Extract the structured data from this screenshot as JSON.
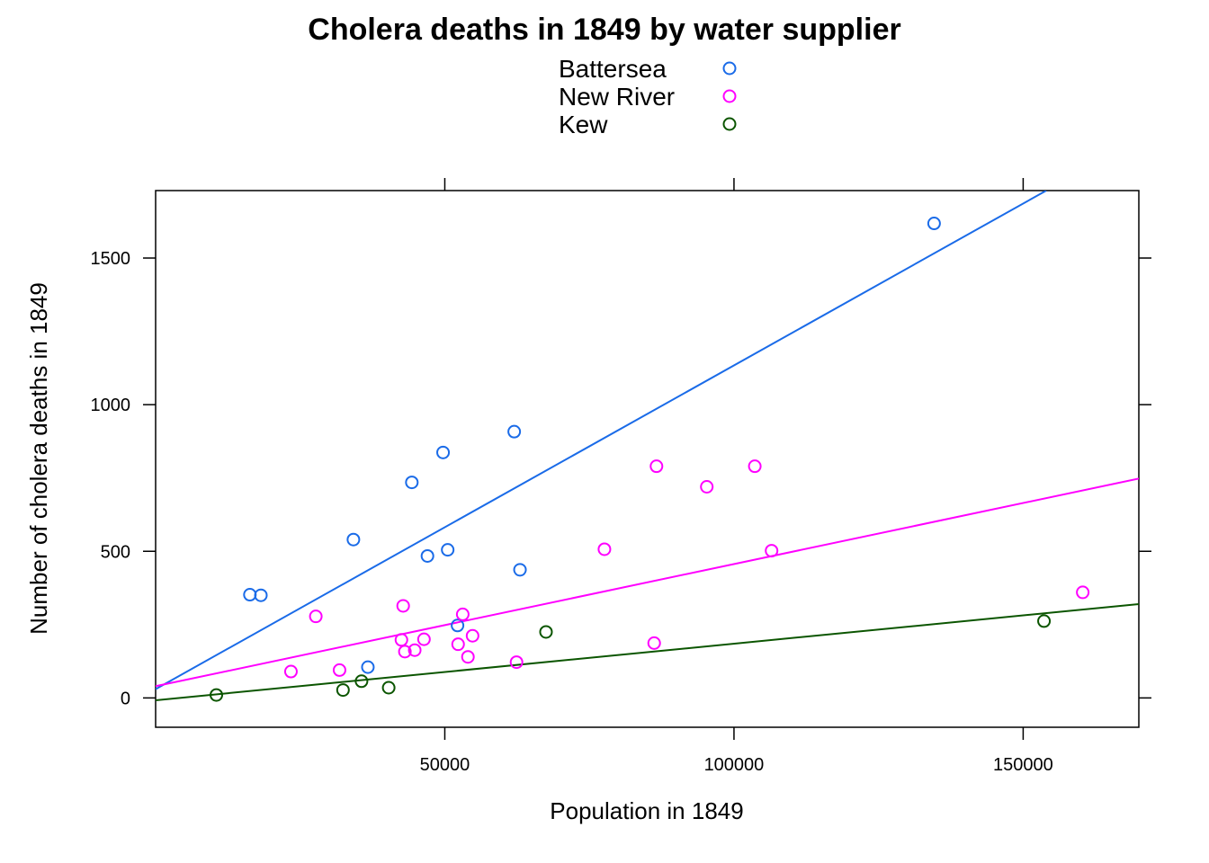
{
  "chart_data": {
    "type": "scatter",
    "title": "Cholera deaths in 1849 by water supplier",
    "xlabel": "Population in 1849",
    "ylabel": "Number of cholera deaths in 1849",
    "xlim": [
      0,
      170000
    ],
    "ylim": [
      -100,
      1730
    ],
    "xticks": [
      50000,
      100000,
      150000
    ],
    "yticks": [
      0,
      500,
      1000,
      1500
    ],
    "xtick_labels": [
      "50000",
      "100000",
      "150000"
    ],
    "ytick_labels": [
      "0",
      "500",
      "1000",
      "1500"
    ],
    "legend_position": "top",
    "grid": false,
    "series": [
      {
        "name": "Battersea",
        "color": "#1a6be8",
        "points": [
          [
            16300,
            352
          ],
          [
            18200,
            350
          ],
          [
            34200,
            540
          ],
          [
            36700,
            105
          ],
          [
            44300,
            735
          ],
          [
            47000,
            484
          ],
          [
            49700,
            837
          ],
          [
            50500,
            505
          ],
          [
            52200,
            247
          ],
          [
            62000,
            908
          ],
          [
            63000,
            437
          ],
          [
            134600,
            1618
          ]
        ],
        "fit_line": [
          [
            0,
            30
          ],
          [
            154000,
            1730
          ]
        ]
      },
      {
        "name": "New River",
        "color": "#ff00ff",
        "points": [
          [
            23400,
            90
          ],
          [
            27700,
            278
          ],
          [
            31800,
            95
          ],
          [
            42500,
            198
          ],
          [
            42800,
            314
          ],
          [
            43100,
            158
          ],
          [
            44800,
            163
          ],
          [
            46400,
            200
          ],
          [
            52300,
            183
          ],
          [
            53100,
            285
          ],
          [
            54000,
            140
          ],
          [
            54800,
            212
          ],
          [
            62400,
            122
          ],
          [
            77600,
            507
          ],
          [
            86200,
            187
          ],
          [
            86600,
            790
          ],
          [
            95300,
            720
          ],
          [
            103600,
            790
          ],
          [
            106500,
            502
          ],
          [
            160300,
            360
          ]
        ],
        "fit_line": [
          [
            0,
            40
          ],
          [
            170000,
            748
          ]
        ]
      },
      {
        "name": "Kew",
        "color": "#0b5500",
        "points": [
          [
            10500,
            10
          ],
          [
            32400,
            27
          ],
          [
            35600,
            57
          ],
          [
            40300,
            35
          ],
          [
            67500,
            225
          ],
          [
            153600,
            262
          ]
        ],
        "fit_line": [
          [
            0,
            -8
          ],
          [
            170000,
            320
          ]
        ]
      }
    ]
  }
}
